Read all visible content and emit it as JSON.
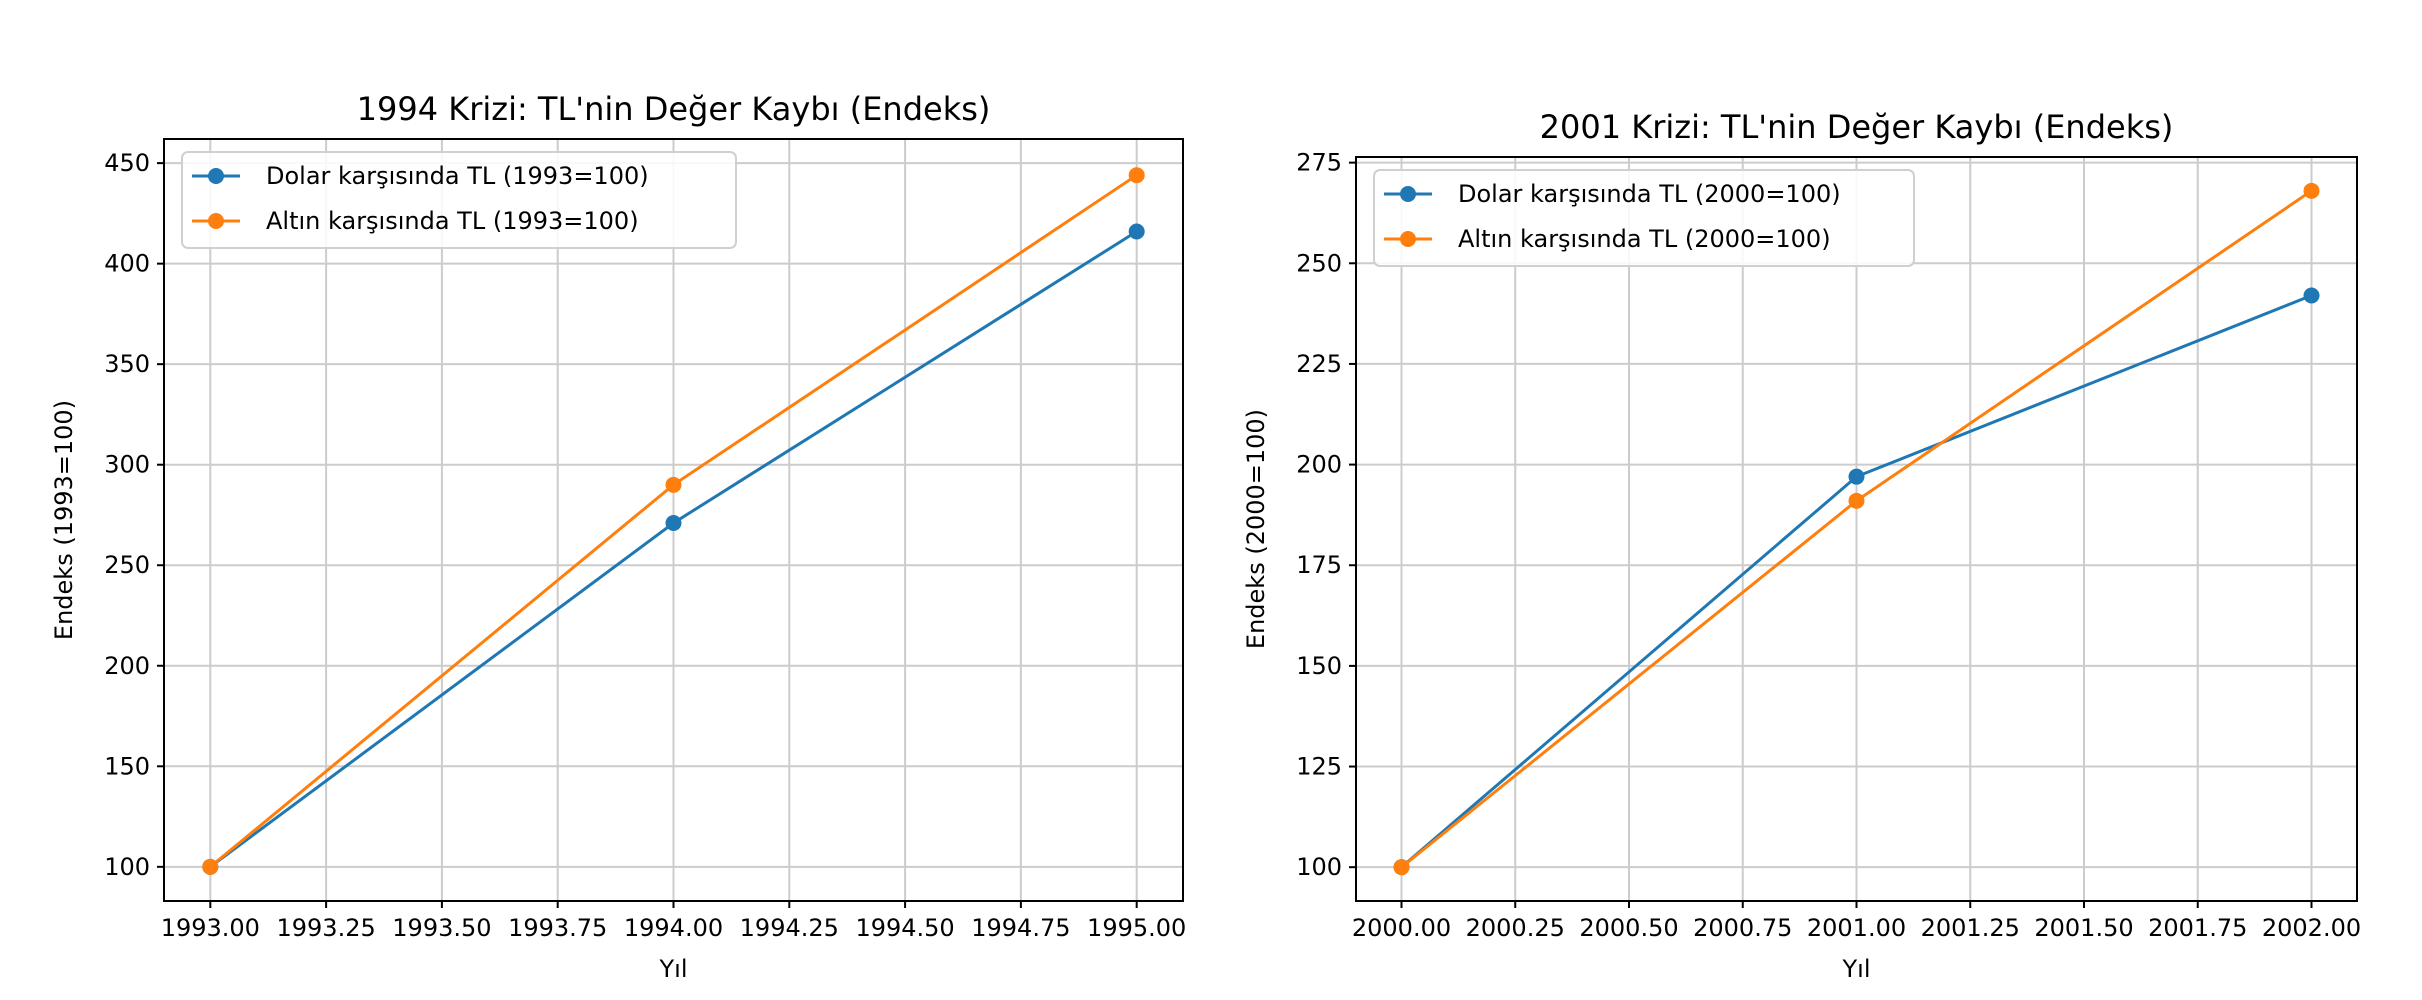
{
  "chart_data": [
    {
      "type": "line",
      "title": "1994 Krizi: TL'nin Değer Kaybı (Endeks)",
      "xlabel": "Yıl",
      "ylabel": "Endeks (1993=100)",
      "x": [
        1993,
        1994,
        1995
      ],
      "xlim": [
        1992.9,
        1995.1
      ],
      "ylim": [
        83,
        462
      ],
      "xticks": [
        1993.0,
        1993.25,
        1993.5,
        1993.75,
        1994.0,
        1994.25,
        1994.5,
        1994.75,
        1995.0
      ],
      "xtick_labels": [
        "1993.00",
        "1993.25",
        "1993.50",
        "1993.75",
        "1994.00",
        "1994.25",
        "1994.50",
        "1994.75",
        "1995.00"
      ],
      "yticks": [
        100,
        150,
        200,
        250,
        300,
        350,
        400,
        450
      ],
      "ytick_labels": [
        "100",
        "150",
        "200",
        "250",
        "300",
        "350",
        "400",
        "450"
      ],
      "grid": true,
      "legend_position": "top-left",
      "series": [
        {
          "name": "Dolar karşısında TL (1993=100)",
          "color": "#1f77b4",
          "values": [
            100,
            271,
            416
          ]
        },
        {
          "name": "Altın karşısında TL (1993=100)",
          "color": "#ff7f0e",
          "values": [
            100,
            290,
            444
          ]
        }
      ]
    },
    {
      "type": "line",
      "title": "2001 Krizi: TL'nin Değer Kaybı (Endeks)",
      "xlabel": "Yıl",
      "ylabel": "Endeks (2000=100)",
      "x": [
        2000,
        2001,
        2002
      ],
      "xlim": [
        1999.9,
        2002.1
      ],
      "ylim": [
        91.6,
        276.4
      ],
      "xticks": [
        2000.0,
        2000.25,
        2000.5,
        2000.75,
        2001.0,
        2001.25,
        2001.5,
        2001.75,
        2002.0
      ],
      "xtick_labels": [
        "2000.00",
        "2000.25",
        "2000.50",
        "2000.75",
        "2001.00",
        "2001.25",
        "2001.50",
        "2001.75",
        "2002.00"
      ],
      "yticks": [
        100,
        125,
        150,
        175,
        200,
        225,
        250,
        275
      ],
      "ytick_labels": [
        "100",
        "125",
        "150",
        "175",
        "200",
        "225",
        "250",
        "275"
      ],
      "grid": true,
      "legend_position": "top-left",
      "series": [
        {
          "name": "Dolar karşısında TL (2000=100)",
          "color": "#1f77b4",
          "values": [
            100,
            197,
            242
          ]
        },
        {
          "name": "Altın karşısında TL (2000=100)",
          "color": "#ff7f0e",
          "values": [
            100,
            191,
            268
          ]
        }
      ]
    }
  ]
}
